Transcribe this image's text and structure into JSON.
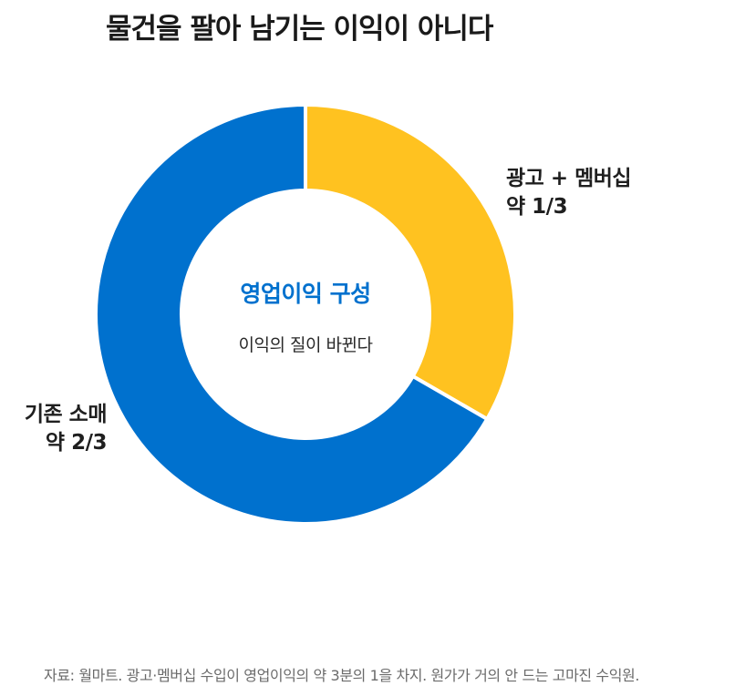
{
  "title": "물건을 팔아 남기는 이익이 아니다",
  "center": {
    "title": "영업이익 구성",
    "subtitle": "이익의 질이 바뀐다"
  },
  "labels": {
    "ads": {
      "line1": "광고 + 멤버십",
      "line2": "약 1/3"
    },
    "retail": {
      "line1": "기존 소매",
      "line2": "약 2/3"
    }
  },
  "source": "자료: 월마트. 광고·멤버십 수입이 영업이익의 약 3분의 1을 차지. 원가가 거의 안 드는 고마진 수익원.",
  "colors": {
    "ads": "#ffc220",
    "retail": "#0071ce",
    "accent": "#0071ce"
  },
  "chart_data": {
    "type": "pie",
    "donut": true,
    "title": "물건을 팔아 남기는 이익이 아니다",
    "series": [
      {
        "name": "광고 + 멤버십",
        "value": 0.3333,
        "label": "약 1/3",
        "color": "#ffc220"
      },
      {
        "name": "기존 소매",
        "value": 0.6667,
        "label": "약 2/3",
        "color": "#0071ce"
      }
    ],
    "start_angle_deg": 0,
    "direction": "clockwise"
  }
}
